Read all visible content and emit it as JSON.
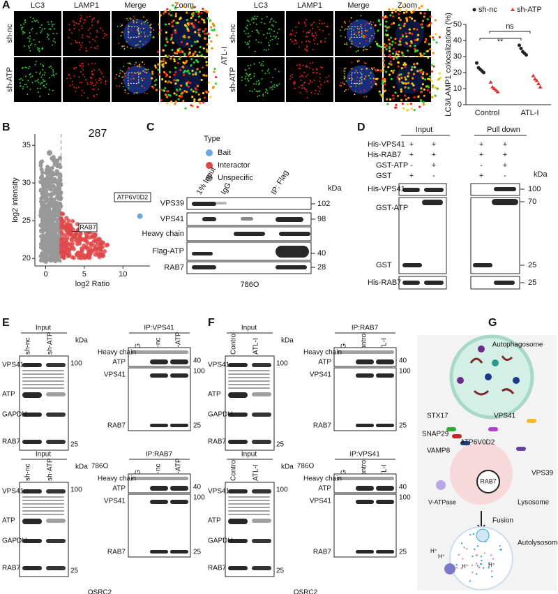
{
  "panel_labels": [
    "A",
    "B",
    "C",
    "D",
    "E",
    "F",
    "G"
  ],
  "panel_a": {
    "columns": [
      "LC3",
      "LAMP1",
      "Merge",
      "Zoom",
      "LC3",
      "LAMP1",
      "Merge",
      "Zoom"
    ],
    "rows": [
      "sh-nc",
      "sh-ATP",
      "sh-nc",
      "sh-ATP"
    ],
    "treatment": "ATL-I"
  },
  "chart_data": [
    {
      "type": "dotplot",
      "y_label": "LC3/LAMP1 colocalization (%)",
      "categories": [
        "Control",
        "ATL-I"
      ],
      "series": [
        {
          "name": "sh-nc",
          "color": "#222222",
          "marker": "circle",
          "values": [
            [
              26,
              23,
              22,
              21,
              20
            ],
            [
              37,
              35,
              33,
              32,
              31
            ]
          ]
        },
        {
          "name": "sh-ATP",
          "color": "#e03030",
          "marker": "triangle",
          "values": [
            [
              14,
              11,
              10,
              9,
              8
            ],
            [
              18,
              16,
              15,
              13,
              11
            ]
          ]
        }
      ],
      "ylim": [
        0,
        50
      ],
      "yticks": [
        0,
        10,
        20,
        30,
        40,
        50
      ],
      "annotations": [
        "**",
        "ns"
      ]
    },
    {
      "type": "scatter",
      "x_label": "log2 Ratio",
      "y_label": "log2 intensity",
      "count_label": "287",
      "legend_title": "Type",
      "series": [
        {
          "name": "Bait",
          "color": "#6fa8dc",
          "x": [
            12.2
          ],
          "values": [
            25.6
          ]
        },
        {
          "name": "Interactor",
          "color": "#e04848",
          "x": [
            3.2
          ],
          "values": [
            23.4
          ]
        },
        {
          "name": "Unspecific",
          "color": "#999999",
          "x": [
            0.5
          ],
          "values": [
            34
          ]
        }
      ],
      "xlim": [
        -1.4,
        13.5
      ],
      "ylim": [
        19,
        36.5
      ],
      "xticks": [
        0,
        5,
        10
      ],
      "yticks": [
        20,
        25,
        30,
        35
      ],
      "threshold_x": 2,
      "annotations": [
        "ATP6V0D2",
        "RAB7"
      ]
    }
  ],
  "panel_c": {
    "lanes": [
      "1% Input",
      "IgG",
      "IP: Flag"
    ],
    "kda": "kDa",
    "rows": [
      "VPS39",
      "VPS41",
      "Heavy chain",
      "Flag-ATP",
      "RAB7"
    ],
    "markers": [
      "102",
      "98",
      "40",
      "28"
    ],
    "cell": "786O"
  },
  "panel_d": {
    "groups": [
      "Input",
      "Pull down"
    ],
    "conditions": [
      "His-VPS41",
      "His-RAB7",
      "GST-ATP",
      "GST"
    ],
    "signs": [
      [
        "+",
        "+",
        "+",
        "+"
      ],
      [
        "+",
        "+",
        "+",
        "+"
      ],
      [
        "-",
        "+",
        "-",
        "+"
      ],
      [
        "+",
        "-",
        "+",
        "-"
      ]
    ],
    "kda": "kDa",
    "rows": [
      "His-VPS41",
      "GST-ATP",
      "GST",
      "His-RAB7"
    ],
    "markers": [
      "100",
      "70",
      "25",
      "25"
    ]
  },
  "blots": [
    {
      "input_title": "Input",
      "lanes": [
        "sh-nc",
        "sh-ATP"
      ],
      "kda": "kDa",
      "rows": [
        "VPS41",
        "ATP",
        "GAPDH",
        "RAB7"
      ],
      "markers": [
        "100",
        "25"
      ],
      "ip_title": "IP:VPS41",
      "ip_lanes": [
        "IgG",
        "sh-nc",
        "sh-ATP"
      ],
      "ip_rows": [
        "Heavy chain",
        "ATP",
        "VPS41",
        "RAB7"
      ],
      "ip_markers": [
        "40",
        "100",
        "25"
      ],
      "cell": "786O"
    },
    {
      "input_title": "Input",
      "lanes": [
        "sh-nc",
        "sh-ATP"
      ],
      "kda": "kDa",
      "rows": [
        "VPS41",
        "ATP",
        "GAPDH",
        "RAB7"
      ],
      "markers": [
        "100",
        "25"
      ],
      "ip_title": "IP:RAB7",
      "ip_lanes": [
        "IgG",
        "sh-nc",
        "sh-ATP"
      ],
      "ip_rows": [
        "Heavy chain",
        "ATP",
        "VPS41",
        "RAB7"
      ],
      "ip_markers": [
        "40",
        "100",
        "25"
      ],
      "cell": "OSRC2"
    },
    {
      "input_title": "Input",
      "lanes": [
        "Control",
        "ATL-I"
      ],
      "kda": "kDa",
      "rows": [
        "VPS41",
        "ATP",
        "GAPDH",
        "RAB7"
      ],
      "markers": [
        "100",
        "25"
      ],
      "ip_title": "IP:RAB7",
      "ip_lanes": [
        "IgG",
        "Control",
        "ATL-I"
      ],
      "ip_rows": [
        "Heavy chain",
        "ATP",
        "VPS41",
        "RAB7"
      ],
      "ip_markers": [
        "40",
        "100",
        "25"
      ],
      "cell": "786O"
    },
    {
      "input_title": "Input",
      "lanes": [
        "Control",
        "ATL-I"
      ],
      "kda": "kDa",
      "rows": [
        "VPS41",
        "ATP",
        "GAPDH",
        "RAB7"
      ],
      "markers": [
        "100",
        "25"
      ],
      "ip_title": "IP:VPS41",
      "ip_lanes": [
        "IgG",
        "Control",
        "ATL-I"
      ],
      "ip_rows": [
        "Heavy chain",
        "ATP",
        "VPS41",
        "RAB7"
      ],
      "ip_markers": [
        "40",
        "100",
        "25"
      ],
      "cell": "OSRC2"
    }
  ],
  "panel_g": {
    "autophagosome": "Autophagosome",
    "stx17": "STX17",
    "snap29": "SNAP29",
    "vamp8": "VAMP8",
    "atp6v0d2": "ATP6V0D2",
    "vps41": "VPS41",
    "vps39": "VPS39",
    "rab7": "RAB7",
    "v_atpase": "V-ATPase",
    "lysosome": "Lysosome",
    "fusion": "Fusion",
    "autolysosome": "Autolysosome",
    "proton": "H⁺"
  }
}
